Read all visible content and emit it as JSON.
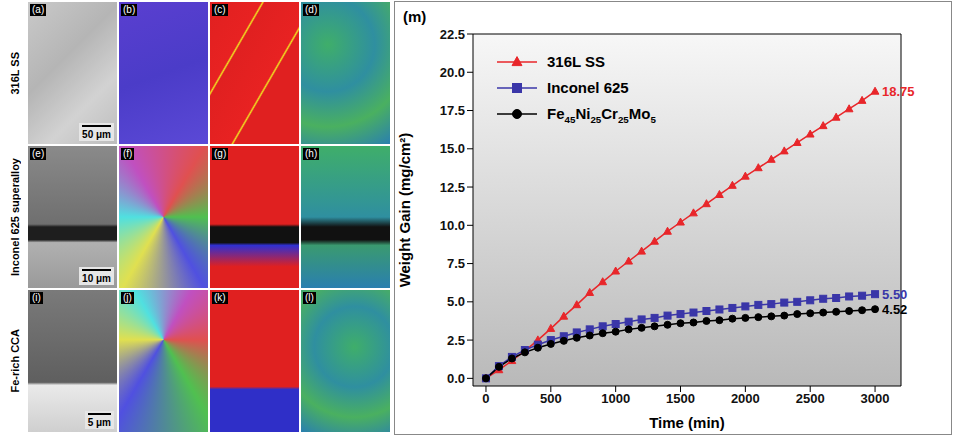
{
  "panels": {
    "rows": [
      {
        "label": "316L SS",
        "letters": [
          "(a)",
          "(b)",
          "(c)",
          "(d)"
        ],
        "scale_bar": "50 μm"
      },
      {
        "label": "Inconel 625 superalloy",
        "letters": [
          "(e)",
          "(f)",
          "(g)",
          "(h)"
        ],
        "scale_bar": "10 μm"
      },
      {
        "label": "Fe-rich CCA",
        "letters": [
          "(i)",
          "(j)",
          "(k)",
          "(l)"
        ],
        "scale_bar": "5 μm"
      }
    ]
  },
  "chart_data": {
    "type": "line",
    "title": "(m)",
    "x_label": "Time (min)",
    "y_label": "Weight Gain (mg/cm²)",
    "x": [
      0,
      100,
      200,
      300,
      400,
      500,
      600,
      700,
      800,
      900,
      1000,
      1100,
      1200,
      1300,
      1400,
      1500,
      1600,
      1700,
      1800,
      1900,
      2000,
      2100,
      2200,
      2300,
      2400,
      2500,
      2600,
      2700,
      2800,
      2900,
      3000
    ],
    "xlim": [
      -100,
      3200
    ],
    "xticks": [
      0,
      500,
      1000,
      1500,
      2000,
      2500,
      3000
    ],
    "ylim": [
      -0.5,
      22.5
    ],
    "yticks": [
      {
        "value": 0,
        "label": "0.0"
      },
      {
        "value": 2.5,
        "label": "2.5"
      },
      {
        "value": 5,
        "label": "5.0"
      },
      {
        "value": 7.5,
        "label": "7.5"
      },
      {
        "value": 10,
        "label": "10.0"
      },
      {
        "value": 12.5,
        "label": "12.5"
      },
      {
        "value": 15,
        "label": "15.0"
      },
      {
        "value": 17.5,
        "label": "17.5"
      },
      {
        "value": 20,
        "label": "20.0"
      },
      {
        "value": 22.5,
        "label": "22.5"
      }
    ],
    "grid": false,
    "legend": "upper left",
    "series": [
      {
        "name": "316L SS",
        "color": "#e8262a",
        "marker": "triangle",
        "line_style": "solid",
        "end_label": "18.75",
        "values": [
          0,
          0.55,
          1.15,
          1.8,
          2.5,
          3.25,
          4.05,
          4.8,
          5.6,
          6.3,
          7.0,
          7.65,
          8.3,
          8.95,
          9.6,
          10.2,
          10.8,
          11.4,
          12.0,
          12.6,
          13.2,
          13.75,
          14.3,
          14.85,
          15.4,
          15.95,
          16.5,
          17.05,
          17.6,
          18.15,
          18.75
        ]
      },
      {
        "name": "Inconel 625",
        "color": "#3a36a8",
        "marker": "square",
        "line_style": "solid",
        "end_label": "5.50",
        "values": [
          0,
          0.8,
          1.4,
          1.85,
          2.2,
          2.5,
          2.75,
          3.0,
          3.2,
          3.4,
          3.55,
          3.7,
          3.85,
          3.95,
          4.1,
          4.2,
          4.3,
          4.4,
          4.5,
          4.6,
          4.7,
          4.8,
          4.85,
          4.95,
          5.0,
          5.1,
          5.2,
          5.25,
          5.35,
          5.4,
          5.5
        ]
      },
      {
        "name": "Fe45Ni25Cr25Mo5",
        "color": "#000000",
        "marker": "circle",
        "line_style": "solid",
        "end_label": "4.52",
        "values": [
          0,
          0.75,
          1.3,
          1.7,
          2.0,
          2.25,
          2.45,
          2.65,
          2.8,
          2.95,
          3.05,
          3.2,
          3.3,
          3.4,
          3.5,
          3.6,
          3.65,
          3.75,
          3.8,
          3.9,
          3.95,
          4.0,
          4.05,
          4.1,
          4.2,
          4.25,
          4.3,
          4.35,
          4.4,
          4.45,
          4.52
        ]
      }
    ]
  }
}
